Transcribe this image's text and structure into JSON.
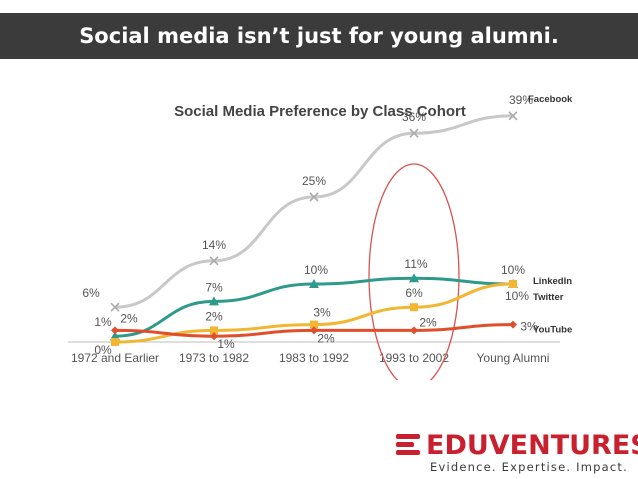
{
  "slide": {
    "heading": "Social media isn’t just for young alumni."
  },
  "logo": {
    "name": "EDUVENTURES",
    "tagline": "Evidence. Expertise. Impact.",
    "color": "#c8202e"
  },
  "chart_data": {
    "type": "line",
    "title": "Social Media Preference by Class Cohort",
    "xlabel": "",
    "ylabel": "",
    "ylim": [
      0,
      40
    ],
    "grid": false,
    "categories": [
      "1972 and Earlier",
      "1973 to 1982",
      "1983 to 1992",
      "1993 to 2002",
      "Young Alumni"
    ],
    "series": [
      {
        "name": "Facebook",
        "values": [
          6,
          14,
          25,
          36,
          39
        ],
        "labels": [
          "6%",
          "14%",
          "25%",
          "36%",
          "39%"
        ],
        "color": "#c8c8c8",
        "marker": "x"
      },
      {
        "name": "LinkedIn",
        "values": [
          1,
          7,
          10,
          11,
          10
        ],
        "labels": [
          "1%",
          "7%",
          "10%",
          "11%",
          "10%"
        ],
        "color": "#2e9a8c",
        "marker": "triangle"
      },
      {
        "name": "Twitter",
        "values": [
          0,
          2,
          3,
          6,
          10
        ],
        "labels": [
          "0%",
          "2%",
          "3%",
          "6%",
          "10%"
        ],
        "color": "#f2b632",
        "marker": "square"
      },
      {
        "name": "YouTube",
        "values": [
          2,
          1,
          2,
          2,
          3
        ],
        "labels": [
          "2%",
          "1%",
          "2%",
          "2%",
          "3%"
        ],
        "color": "#e04e2c",
        "marker": "diamond"
      }
    ],
    "highlight": {
      "category": "1993 to 2002",
      "shape": "ellipse",
      "color": "#d9534f"
    }
  }
}
